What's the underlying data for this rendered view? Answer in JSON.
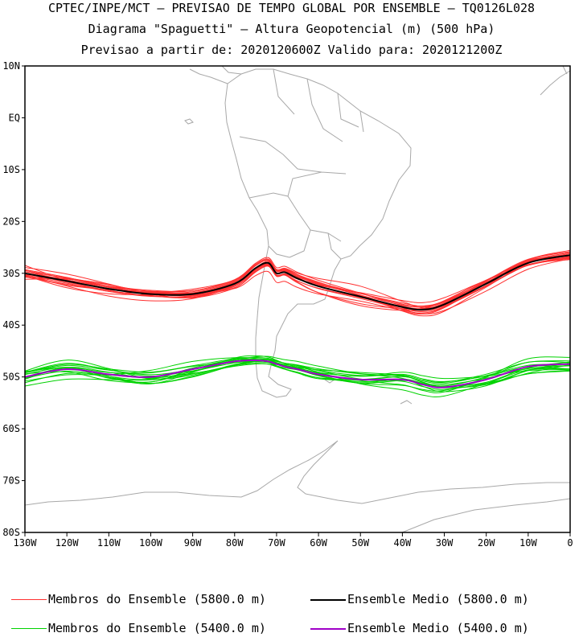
{
  "header": {
    "line1": "CPTEC/INPE/MCT – PREVISAO DE TEMPO GLOBAL POR ENSEMBLE – TQ0126L028",
    "line2": "Diagrama \"Spaguetti\" – Altura Geopotencial (m) (500 hPa)",
    "line3": "Previsao a partir de: 2020120600Z  Valido para: 2020121200Z"
  },
  "chart_data": {
    "type": "line",
    "title": "Diagrama \"Spaguetti\" – Altura Geopotencial (m) (500 hPa)",
    "xlim": [
      -130,
      0
    ],
    "ylim": [
      -80,
      10
    ],
    "x_ticks": [
      {
        "value": -130,
        "label": "130W"
      },
      {
        "value": -120,
        "label": "120W"
      },
      {
        "value": -110,
        "label": "110W"
      },
      {
        "value": -100,
        "label": "100W"
      },
      {
        "value": -90,
        "label": "90W"
      },
      {
        "value": -80,
        "label": "80W"
      },
      {
        "value": -70,
        "label": "70W"
      },
      {
        "value": -60,
        "label": "60W"
      },
      {
        "value": -50,
        "label": "50W"
      },
      {
        "value": -40,
        "label": "40W"
      },
      {
        "value": -30,
        "label": "30W"
      },
      {
        "value": -20,
        "label": "20W"
      },
      {
        "value": -10,
        "label": "10W"
      },
      {
        "value": 0,
        "label": "0"
      }
    ],
    "y_ticks": [
      {
        "value": 10,
        "label": "10N"
      },
      {
        "value": 0,
        "label": "EQ"
      },
      {
        "value": -10,
        "label": "10S"
      },
      {
        "value": -20,
        "label": "20S"
      },
      {
        "value": -30,
        "label": "30S"
      },
      {
        "value": -40,
        "label": "40S"
      },
      {
        "value": -50,
        "label": "50S"
      },
      {
        "value": -60,
        "label": "60S"
      },
      {
        "value": -70,
        "label": "70S"
      },
      {
        "value": -80,
        "label": "80S"
      }
    ],
    "x": [
      -130,
      -120,
      -110,
      -100,
      -90,
      -80,
      -75,
      -72,
      -70,
      -68,
      -65,
      -60,
      -50,
      -40,
      -35,
      -30,
      -20,
      -10,
      0
    ],
    "series": [
      {
        "name": "Ensemble Medio (5800.0 m)",
        "color": "#000000",
        "width": 2,
        "values": [
          -30,
          -31.5,
          -33,
          -34,
          -34,
          -32,
          -29,
          -28,
          -30,
          -29.8,
          -31,
          -32.5,
          -34.5,
          -36.5,
          -37,
          -36,
          -32,
          -28,
          -26.5
        ]
      },
      {
        "name": "Ensemble Medio (5400.0 m)",
        "color": "#a000c8",
        "width": 2,
        "values": [
          -50,
          -48.5,
          -49.5,
          -50,
          -48.5,
          -47,
          -46.8,
          -47,
          -47.5,
          -48,
          -48.5,
          -49.5,
          -50.5,
          -50.5,
          -51.5,
          -52,
          -50.5,
          -48,
          -47.5
        ]
      }
    ],
    "members": [
      {
        "group": "5800.0 m",
        "color": "#ff3030",
        "count": 15
      },
      {
        "group": "5400.0 m",
        "color": "#00d200",
        "count": 15
      }
    ],
    "legend": [
      {
        "label": "Membros do Ensemble (5800.0 m)",
        "color": "#ff3030"
      },
      {
        "label": "Ensemble Medio (5800.0 m)",
        "color": "#000000"
      },
      {
        "label": "Membros do Ensemble (5400.0 m)",
        "color": "#00d200"
      },
      {
        "label": "Ensemble Medio (5400.0 m)",
        "color": "#a000c8"
      }
    ]
  }
}
